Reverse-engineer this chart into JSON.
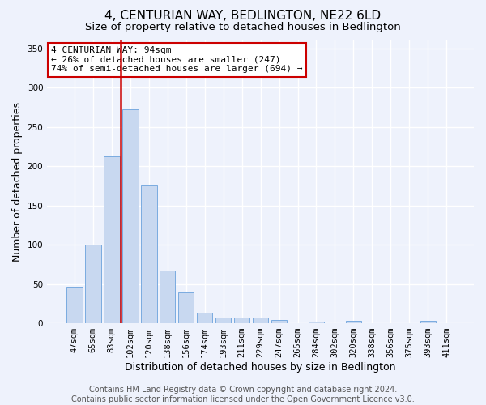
{
  "title": "4, CENTURIAN WAY, BEDLINGTON, NE22 6LD",
  "subtitle": "Size of property relative to detached houses in Bedlington",
  "xlabel": "Distribution of detached houses by size in Bedlington",
  "ylabel": "Number of detached properties",
  "categories": [
    "47sqm",
    "65sqm",
    "83sqm",
    "102sqm",
    "120sqm",
    "138sqm",
    "156sqm",
    "174sqm",
    "193sqm",
    "211sqm",
    "229sqm",
    "247sqm",
    "265sqm",
    "284sqm",
    "302sqm",
    "320sqm",
    "338sqm",
    "356sqm",
    "375sqm",
    "393sqm",
    "411sqm"
  ],
  "values": [
    47,
    100,
    213,
    272,
    175,
    67,
    39,
    13,
    7,
    7,
    7,
    4,
    0,
    2,
    0,
    3,
    0,
    0,
    0,
    3,
    0
  ],
  "bar_color": "#c8d8f0",
  "bar_edge_color": "#7aabe0",
  "vline_color": "#cc0000",
  "vline_x": 2.5,
  "annotation_text": "4 CENTURIAN WAY: 94sqm\n← 26% of detached houses are smaller (247)\n74% of semi-detached houses are larger (694) →",
  "annotation_box_color": "#ffffff",
  "annotation_box_edge": "#cc0000",
  "ylim": [
    0,
    360
  ],
  "yticks": [
    0,
    50,
    100,
    150,
    200,
    250,
    300,
    350
  ],
  "footer": "Contains HM Land Registry data © Crown copyright and database right 2024.\nContains public sector information licensed under the Open Government Licence v3.0.",
  "background_color": "#eef2fc",
  "grid_color": "#ffffff",
  "title_fontsize": 11,
  "subtitle_fontsize": 9.5,
  "label_fontsize": 9,
  "tick_fontsize": 7.5,
  "footer_fontsize": 7
}
